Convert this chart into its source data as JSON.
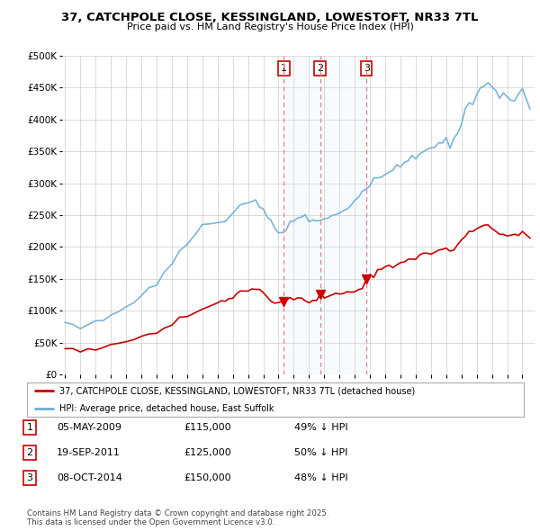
{
  "title": "37, CATCHPOLE CLOSE, KESSINGLAND, LOWESTOFT, NR33 7TL",
  "subtitle": "Price paid vs. HM Land Registry's House Price Index (HPI)",
  "legend_line1": "37, CATCHPOLE CLOSE, KESSINGLAND, LOWESTOFT, NR33 7TL (detached house)",
  "legend_line2": "HPI: Average price, detached house, East Suffolk",
  "footnote": "Contains HM Land Registry data © Crown copyright and database right 2025.\nThis data is licensed under the Open Government Licence v3.0.",
  "transactions": [
    {
      "label": "1",
      "date": "05-MAY-2009",
      "price": "£115,000",
      "hpi_note": "49% ↓ HPI",
      "x": 2009.34
    },
    {
      "label": "2",
      "date": "19-SEP-2011",
      "price": "£125,000",
      "hpi_note": "50% ↓ HPI",
      "x": 2011.72
    },
    {
      "label": "3",
      "date": "08-OCT-2014",
      "price": "£150,000",
      "hpi_note": "48% ↓ HPI",
      "x": 2014.77
    }
  ],
  "hpi_color": "#6baed6",
  "hpi_fill_color": "#d6eaf8",
  "price_color": "#cc0000",
  "vline_color": "#e88080",
  "marker_color": "#cc0000",
  "background_color": "#ffffff",
  "grid_color": "#cccccc",
  "ylim": [
    0,
    500000
  ],
  "xlim": [
    1994.8,
    2025.8
  ],
  "shade_x1": 2009.34,
  "shade_x2": 2014.77
}
